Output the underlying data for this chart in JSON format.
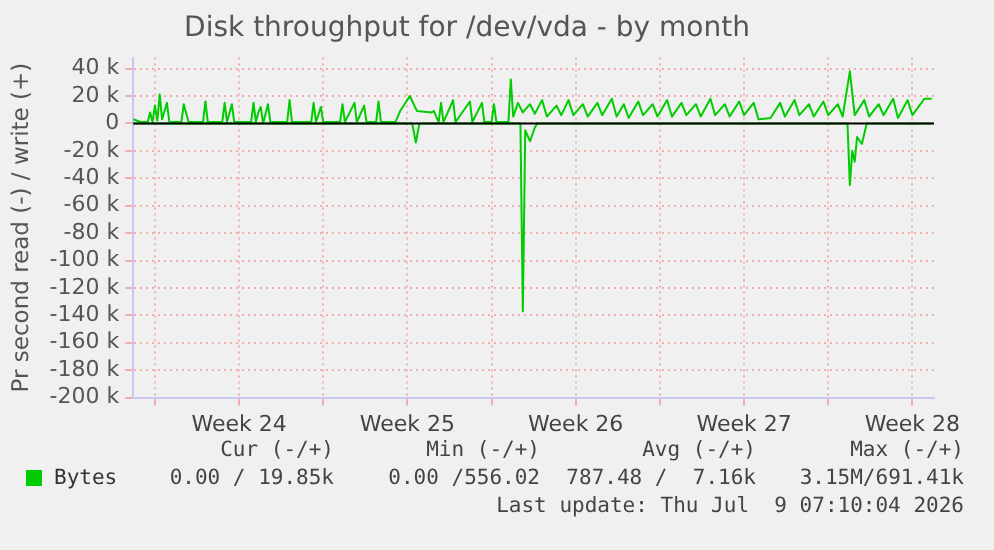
{
  "chart_data": {
    "type": "line",
    "title": "Disk throughput for /dev/vda - by month",
    "ylabel": "Pr second read (-) / write (+)",
    "xlim": [
      "2026-06-06T00:00",
      "2026-07-09T07:10"
    ],
    "xticks": [
      {
        "value": "2026-06-06T21:36",
        "label": null
      },
      {
        "value": "2026-06-10T09:36",
        "label": "Week 24"
      },
      {
        "value": "2026-06-13T21:36",
        "label": null
      },
      {
        "value": "2026-06-17T09:36",
        "label": "Week 25"
      },
      {
        "value": "2026-06-20T21:36",
        "label": null
      },
      {
        "value": "2026-06-24T09:36",
        "label": "Week 26"
      },
      {
        "value": "2026-06-27T21:36",
        "label": null
      },
      {
        "value": "2026-07-01T09:36",
        "label": "Week 27"
      },
      {
        "value": "2026-07-04T21:36",
        "label": null
      },
      {
        "value": "2026-07-08T09:36",
        "label": "Week 28"
      }
    ],
    "ylim": [
      -200000,
      48000
    ],
    "yticks": [
      {
        "value": 40000,
        "label": "40 k"
      },
      {
        "value": 20000,
        "label": "20 k"
      },
      0,
      {
        "value": -20000,
        "label": "-20 k"
      },
      {
        "value": -40000,
        "label": "-40 k"
      },
      {
        "value": -60000,
        "label": "-60 k"
      },
      {
        "value": -80000,
        "label": "-80 k"
      },
      {
        "value": -100000,
        "label": "-100 k"
      },
      {
        "value": -120000,
        "label": "-120 k"
      },
      {
        "value": -140000,
        "label": "-140 k"
      },
      {
        "value": -160000,
        "label": "-160 k"
      },
      {
        "value": -180000,
        "label": "-180 k"
      },
      {
        "value": -200000,
        "label": "-200 k"
      }
    ],
    "grid": true,
    "legend": "bottom",
    "marker": "none",
    "line_style": "solid",
    "ref_lines": [
      {
        "axis": "y",
        "value": 0,
        "color": "#000000"
      }
    ],
    "series": [
      {
        "name": "Bytes",
        "color": "#00cc00",
        "x": [
          "2026-06-06T00:00",
          "2026-06-06T07:12",
          "2026-06-06T14:24",
          "2026-06-06T16:48",
          "2026-06-06T19:12",
          "2026-06-06T21:36",
          "2026-06-07T00:00",
          "2026-06-07T02:24",
          "2026-06-07T04:48",
          "2026-06-07T09:36",
          "2026-06-07T12:00",
          "2026-06-08T00:00",
          "2026-06-08T02:24",
          "2026-06-08T07:12",
          "2026-06-08T21:36",
          "2026-06-09T00:00",
          "2026-06-09T02:24",
          "2026-06-09T16:48",
          "2026-06-09T19:12",
          "2026-06-09T21:36",
          "2026-06-10T02:24",
          "2026-06-10T04:48",
          "2026-06-10T21:36",
          "2026-06-11T00:00",
          "2026-06-11T02:24",
          "2026-06-11T04:48",
          "2026-06-11T07:12",
          "2026-06-11T09:36",
          "2026-06-11T14:24",
          "2026-06-11T16:48",
          "2026-06-12T09:36",
          "2026-06-12T12:00",
          "2026-06-12T14:24",
          "2026-06-13T09:36",
          "2026-06-13T12:00",
          "2026-06-13T14:24",
          "2026-06-13T19:12",
          "2026-06-13T21:36",
          "2026-06-14T14:24",
          "2026-06-14T16:48",
          "2026-06-14T19:12",
          "2026-06-15T04:48",
          "2026-06-15T07:12",
          "2026-06-15T14:24",
          "2026-06-15T16:48",
          "2026-06-16T02:24",
          "2026-06-16T04:48",
          "2026-06-16T07:12",
          "2026-06-16T21:36",
          "2026-06-17T02:24",
          "2026-06-17T12:00",
          "2026-06-17T19:12",
          "2026-06-18T09:36",
          "2026-06-18T12:00",
          "2026-06-18T16:48",
          "2026-06-18T19:12",
          "2026-06-18T21:36",
          "2026-06-19T07:12",
          "2026-06-19T09:36",
          "2026-06-20T00:00",
          "2026-06-20T02:24",
          "2026-06-20T12:00",
          "2026-06-20T14:24",
          "2026-06-20T21:36",
          "2026-06-21T00:00",
          "2026-06-21T02:24",
          "2026-06-21T14:24",
          "2026-06-21T16:48",
          "2026-06-21T19:12",
          "2026-06-22T00:00",
          "2026-06-22T04:48",
          "2026-06-22T12:00",
          "2026-06-22T16:48",
          "2026-06-23T00:00",
          "2026-06-23T04:48",
          "2026-06-23T14:24",
          "2026-06-23T19:12",
          "2026-06-24T02:24",
          "2026-06-24T07:12",
          "2026-06-24T16:48",
          "2026-06-24T21:36",
          "2026-06-25T07:12",
          "2026-06-25T12:00",
          "2026-06-25T21:36",
          "2026-06-26T02:24",
          "2026-06-26T09:36",
          "2026-06-26T14:24",
          "2026-06-27T00:00",
          "2026-06-27T04:48",
          "2026-06-27T14:24",
          "2026-06-27T19:12",
          "2026-06-28T04:48",
          "2026-06-28T09:36",
          "2026-06-28T19:12",
          "2026-06-29T00:00",
          "2026-06-29T09:36",
          "2026-06-29T14:24",
          "2026-06-30T00:00",
          "2026-06-30T04:48",
          "2026-06-30T14:24",
          "2026-06-30T19:12",
          "2026-07-01T04:48",
          "2026-07-01T09:36",
          "2026-07-01T19:12",
          "2026-07-02T00:00",
          "2026-07-02T12:00",
          "2026-07-02T21:36",
          "2026-07-03T02:24",
          "2026-07-03T12:00",
          "2026-07-03T16:48",
          "2026-07-04T02:24",
          "2026-07-04T07:12",
          "2026-07-04T16:48",
          "2026-07-04T21:36",
          "2026-07-05T07:12",
          "2026-07-05T12:00",
          "2026-07-05T19:12",
          "2026-07-06T00:00",
          "2026-07-06T09:36",
          "2026-07-06T14:24",
          "2026-07-07T00:00",
          "2026-07-07T04:48",
          "2026-07-07T14:24",
          "2026-07-07T19:12",
          "2026-07-08T04:48",
          "2026-07-08T09:36",
          "2026-07-08T21:36",
          "2026-07-09T04:48"
        ],
        "values": [
          3000,
          1000,
          1000,
          8000,
          1000,
          13000,
          2000,
          21000,
          3000,
          15000,
          1000,
          1000,
          14000,
          1000,
          1000,
          16000,
          1000,
          1000,
          15000,
          1000,
          14000,
          1000,
          1000,
          15000,
          1000,
          8000,
          12000,
          0,
          14000,
          1000,
          1000,
          17000,
          1000,
          1000,
          15000,
          1000,
          12000,
          1000,
          1000,
          14000,
          1000,
          15000,
          1000,
          13000,
          1000,
          1000,
          16000,
          1000,
          1000,
          9000,
          20000,
          9000,
          8000,
          9000,
          1000,
          15000,
          1000,
          17000,
          1000,
          16000,
          1000,
          15000,
          1000,
          1000,
          14000,
          1000,
          1000,
          32000,
          5000,
          15000,
          8000,
          14000,
          7000,
          17000,
          5000,
          13000,
          6000,
          17000,
          6000,
          14000,
          5000,
          15000,
          6000,
          18000,
          5000,
          14000,
          4000,
          16000,
          6000,
          14000,
          5000,
          17000,
          5000,
          15000,
          6000,
          14000,
          5000,
          18000,
          6000,
          14000,
          5000,
          16000,
          6000,
          15000,
          3000,
          4000,
          15000,
          5000,
          17000,
          6000,
          14000,
          5000,
          16000,
          6000,
          14000,
          5000,
          38000,
          6000,
          17000,
          5000,
          14000,
          6000,
          18000,
          4000,
          17000,
          6000,
          18000,
          18000
        ]
      },
      {
        "color": "#00cc00",
        "x": [
          "2026-06-06T00:00",
          "2026-06-17T14:24",
          "2026-06-17T18:00",
          "2026-06-17T21:36",
          "2026-06-22T02:24",
          "2026-06-22T04:48",
          "2026-06-22T07:12",
          "2026-06-22T12:00",
          "2026-06-22T16:48",
          "2026-06-22T19:12",
          "2026-07-05T16:48",
          "2026-07-05T19:12",
          "2026-07-05T21:36",
          "2026-07-06T00:00",
          "2026-07-06T02:24",
          "2026-07-06T07:12",
          "2026-07-06T12:00",
          "2026-07-09T04:48"
        ],
        "values": [
          0,
          0,
          -14000,
          0,
          0,
          -137000,
          -5000,
          -13000,
          -3000,
          0,
          0,
          -45000,
          -20000,
          -28000,
          -10000,
          -15000,
          0,
          0
        ]
      }
    ],
    "annotations": [
      "Cur (-/+)",
      "Min (-/+)",
      "Avg (-/+)",
      "Max (-/+)",
      "0.00 / 19.85k",
      "0.00 /556.02",
      "787.48 /  7.16k",
      "3.15M/691.41k",
      "Last update: Thu Jul  9 07:10:04 2026"
    ]
  }
}
